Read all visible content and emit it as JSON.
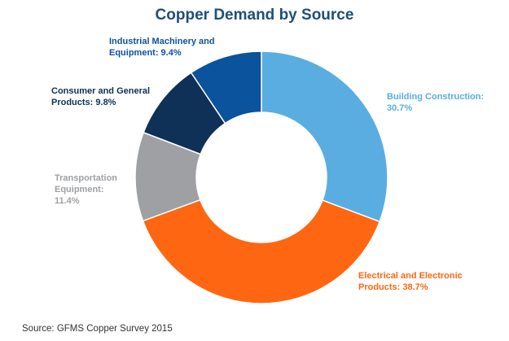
{
  "chart_data": {
    "type": "pie",
    "variant": "donut",
    "title": "Copper Demand by Source",
    "source": "Source: GFMS Copper Survey 2015",
    "slices": [
      {
        "name": "Building Construction",
        "value": 30.7,
        "color": "#5aade0",
        "label_lines": [
          "Building Construction:",
          "30.7%"
        ]
      },
      {
        "name": "Electrical and Electronic Products",
        "value": 38.7,
        "color": "#ff6611",
        "label_lines": [
          "Electrical and Electronic",
          "Products: 38.7%"
        ]
      },
      {
        "name": "Transportation Equipment",
        "value": 11.4,
        "color": "#9ea0a3",
        "label_lines": [
          "Transportation",
          "Equipment:",
          "11.4%"
        ]
      },
      {
        "name": "Consumer and General Products",
        "value": 9.8,
        "color": "#0f3057",
        "label_lines": [
          "Consumer and General",
          "Products: 9.8%"
        ]
      },
      {
        "name": "Industrial Machinery and Equipment",
        "value": 9.4,
        "color": "#0b539c",
        "label_lines": [
          "Industrial Machinery and",
          "Equipment: 9.4%"
        ]
      }
    ]
  }
}
